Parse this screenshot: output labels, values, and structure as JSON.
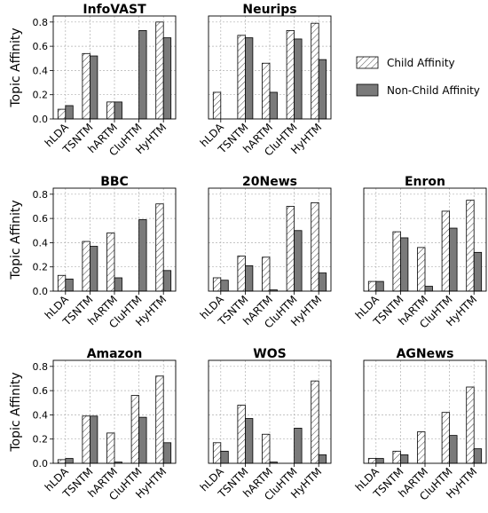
{
  "legend": {
    "child_label": "Child Affinity",
    "nonchild_label": "Non-Child Affinity",
    "placement": "right-of-top-row"
  },
  "colors": {
    "child_fill": "#ffffff",
    "child_hatch": "#444444",
    "nonchild_fill": "#7a7a7a",
    "bar_edge": "#000000"
  },
  "chart_data": [
    {
      "type": "bar",
      "title": "InfoVAST",
      "ylabel": "Topic Affinity",
      "ylim": [
        0,
        0.85
      ],
      "yticks": [
        "0.0",
        "0.2",
        "0.4",
        "0.6",
        "0.8"
      ],
      "grid": true,
      "categories": [
        "hLDA",
        "TSNTM",
        "hARTM",
        "CluHTM",
        "HyHTM"
      ],
      "series": [
        {
          "name": "Child Affinity",
          "values": [
            0.08,
            0.54,
            0.14,
            0.0,
            0.8
          ]
        },
        {
          "name": "Non-Child Affinity",
          "values": [
            0.11,
            0.52,
            0.14,
            0.73,
            0.67
          ]
        }
      ]
    },
    {
      "type": "bar",
      "title": "Neurips",
      "ylabel": "",
      "ylim": [
        0,
        0.85
      ],
      "yticks": [],
      "grid": true,
      "categories": [
        "hLDA",
        "TSNTM",
        "hARTM",
        "CluHTM",
        "HyHTM"
      ],
      "series": [
        {
          "name": "Child Affinity",
          "values": [
            0.22,
            0.69,
            0.46,
            0.73,
            0.79
          ]
        },
        {
          "name": "Non-Child Affinity",
          "values": [
            0.0,
            0.67,
            0.22,
            0.66,
            0.49
          ]
        }
      ]
    },
    {
      "type": "bar",
      "title": "BBC",
      "ylabel": "Topic Affinity",
      "ylim": [
        0,
        0.85
      ],
      "yticks": [
        "0.0",
        "0.2",
        "0.4",
        "0.6",
        "0.8"
      ],
      "grid": true,
      "categories": [
        "hLDA",
        "TSNTM",
        "hARTM",
        "CluHTM",
        "HyHTM"
      ],
      "series": [
        {
          "name": "Child Affinity",
          "values": [
            0.13,
            0.41,
            0.48,
            0.0,
            0.72
          ]
        },
        {
          "name": "Non-Child Affinity",
          "values": [
            0.1,
            0.37,
            0.11,
            0.59,
            0.17
          ]
        }
      ]
    },
    {
      "type": "bar",
      "title": "20News",
      "ylabel": "",
      "ylim": [
        0,
        0.85
      ],
      "yticks": [],
      "grid": true,
      "categories": [
        "hLDA",
        "TSNTM",
        "hARTM",
        "CluHTM",
        "HyHTM"
      ],
      "series": [
        {
          "name": "Child Affinity",
          "values": [
            0.11,
            0.29,
            0.28,
            0.7,
            0.73
          ]
        },
        {
          "name": "Non-Child Affinity",
          "values": [
            0.09,
            0.21,
            0.01,
            0.5,
            0.15
          ]
        }
      ]
    },
    {
      "type": "bar",
      "title": "Enron",
      "ylabel": "",
      "ylim": [
        0,
        0.85
      ],
      "yticks": [],
      "grid": true,
      "categories": [
        "hLDA",
        "TSNTM",
        "hARTM",
        "CluHTM",
        "HyHTM"
      ],
      "series": [
        {
          "name": "Child Affinity",
          "values": [
            0.08,
            0.49,
            0.36,
            0.66,
            0.75
          ]
        },
        {
          "name": "Non-Child Affinity",
          "values": [
            0.08,
            0.44,
            0.04,
            0.52,
            0.32
          ]
        }
      ]
    },
    {
      "type": "bar",
      "title": "Amazon",
      "ylabel": "Topic Affinity",
      "ylim": [
        0,
        0.85
      ],
      "yticks": [
        "0.0",
        "0.2",
        "0.4",
        "0.6",
        "0.8"
      ],
      "grid": true,
      "categories": [
        "hLDA",
        "TSNTM",
        "hARTM",
        "CluHTM",
        "HyHTM"
      ],
      "series": [
        {
          "name": "Child Affinity",
          "values": [
            0.03,
            0.39,
            0.25,
            0.56,
            0.72
          ]
        },
        {
          "name": "Non-Child Affinity",
          "values": [
            0.04,
            0.39,
            0.01,
            0.38,
            0.17
          ]
        }
      ]
    },
    {
      "type": "bar",
      "title": "WOS",
      "ylabel": "",
      "ylim": [
        0,
        0.85
      ],
      "yticks": [],
      "grid": true,
      "categories": [
        "hLDA",
        "TSNTM",
        "hARTM",
        "CluHTM",
        "HyHTM"
      ],
      "series": [
        {
          "name": "Child Affinity",
          "values": [
            0.17,
            0.48,
            0.24,
            0.0,
            0.68
          ]
        },
        {
          "name": "Non-Child Affinity",
          "values": [
            0.1,
            0.37,
            0.01,
            0.29,
            0.07
          ]
        }
      ]
    },
    {
      "type": "bar",
      "title": "AGNews",
      "ylabel": "",
      "ylim": [
        0,
        0.85
      ],
      "yticks": [],
      "grid": true,
      "categories": [
        "hLDA",
        "TSNTM",
        "hARTM",
        "CluHTM",
        "HyHTM"
      ],
      "series": [
        {
          "name": "Child Affinity",
          "values": [
            0.04,
            0.1,
            0.26,
            0.42,
            0.63
          ]
        },
        {
          "name": "Non-Child Affinity",
          "values": [
            0.04,
            0.07,
            0.0,
            0.23,
            0.12
          ]
        }
      ]
    }
  ]
}
